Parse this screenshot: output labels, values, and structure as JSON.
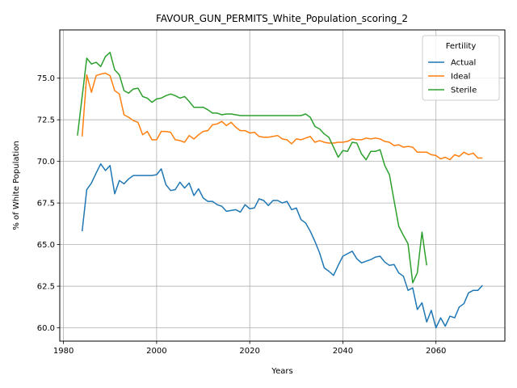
{
  "chart_data": {
    "type": "line",
    "title": "FAVOUR_GUN_PERMITS_White_Population_scoring_2",
    "xlabel": "Years",
    "ylabel": "% of White Population",
    "xlim": [
      1979.2,
      2074.8
    ],
    "ylim": [
      59.2,
      77.9
    ],
    "xticks": [
      1980,
      2000,
      2020,
      2040,
      2060
    ],
    "xtick_labels": [
      "1980",
      "2000",
      "2020",
      "2040",
      "2060"
    ],
    "yticks": [
      60.0,
      62.5,
      65.0,
      67.5,
      70.0,
      72.5,
      75.0
    ],
    "ytick_labels": [
      "60.0",
      "62.5",
      "65.0",
      "67.5",
      "70.0",
      "72.5",
      "75.0"
    ],
    "grid": true,
    "legend": {
      "title": "Fertility",
      "placement": "top-right"
    },
    "series": [
      {
        "name": "Actual",
        "color": "#1f77b4",
        "x": [
          1984,
          1985,
          1986,
          1987,
          1988,
          1989,
          1990,
          1991,
          1992,
          1993,
          1994,
          1995,
          1996,
          1997,
          1998,
          1999,
          2000,
          2001,
          2002,
          2003,
          2004,
          2005,
          2006,
          2007,
          2008,
          2009,
          2010,
          2011,
          2012,
          2013,
          2014,
          2015,
          2016,
          2017,
          2018,
          2019,
          2020,
          2021,
          2022,
          2023,
          2024,
          2025,
          2026,
          2027,
          2028,
          2029,
          2030,
          2031,
          2032,
          2033,
          2034,
          2035,
          2036,
          2037,
          2038,
          2039,
          2040,
          2041,
          2042,
          2043,
          2044,
          2045,
          2046,
          2047,
          2048,
          2049,
          2050,
          2051,
          2052,
          2053,
          2054,
          2055,
          2056,
          2057,
          2058,
          2059,
          2060,
          2061,
          2062,
          2063,
          2064,
          2065,
          2066,
          2067,
          2068,
          2069,
          2070
        ],
        "values": [
          65.8,
          68.3,
          68.7,
          69.3,
          69.85,
          69.45,
          69.75,
          68.05,
          68.85,
          68.65,
          68.95,
          69.15,
          69.15,
          69.15,
          69.15,
          69.15,
          69.2,
          69.55,
          68.6,
          68.25,
          68.3,
          68.75,
          68.4,
          68.7,
          67.95,
          68.35,
          67.8,
          67.6,
          67.6,
          67.4,
          67.3,
          67.0,
          67.05,
          67.1,
          66.95,
          67.4,
          67.15,
          67.2,
          67.75,
          67.65,
          67.35,
          67.65,
          67.65,
          67.5,
          67.6,
          67.1,
          67.2,
          66.5,
          66.3,
          65.8,
          65.2,
          64.5,
          63.6,
          63.4,
          63.15,
          63.75,
          64.3,
          64.45,
          64.6,
          64.15,
          63.9,
          64.0,
          64.1,
          64.25,
          64.3,
          63.95,
          63.75,
          63.8,
          63.3,
          63.1,
          62.25,
          62.4,
          61.1,
          61.5,
          60.35,
          61.05,
          60.0,
          60.6,
          60.1,
          60.7,
          60.6,
          61.25,
          61.45,
          62.1,
          62.25,
          62.25,
          62.55
        ]
      },
      {
        "name": "Ideal",
        "color": "#ff7f0e",
        "x": [
          1984,
          1985,
          1986,
          1987,
          1988,
          1989,
          1990,
          1991,
          1992,
          1993,
          1994,
          1995,
          1996,
          1997,
          1998,
          1999,
          2000,
          2001,
          2002,
          2003,
          2004,
          2005,
          2006,
          2007,
          2008,
          2009,
          2010,
          2011,
          2012,
          2013,
          2014,
          2015,
          2016,
          2017,
          2018,
          2019,
          2020,
          2021,
          2022,
          2023,
          2024,
          2025,
          2026,
          2027,
          2028,
          2029,
          2030,
          2031,
          2032,
          2033,
          2034,
          2035,
          2036,
          2037,
          2038,
          2039,
          2040,
          2041,
          2042,
          2043,
          2044,
          2045,
          2046,
          2047,
          2048,
          2049,
          2050,
          2051,
          2052,
          2053,
          2054,
          2055,
          2056,
          2057,
          2058,
          2059,
          2060,
          2061,
          2062,
          2063,
          2064,
          2065,
          2066,
          2067,
          2068,
          2069,
          2070
        ],
        "values": [
          71.5,
          75.2,
          74.15,
          75.15,
          75.25,
          75.3,
          75.15,
          74.25,
          74.05,
          72.8,
          72.65,
          72.45,
          72.35,
          71.6,
          71.8,
          71.3,
          71.3,
          71.8,
          71.8,
          71.75,
          71.3,
          71.25,
          71.15,
          71.55,
          71.35,
          71.6,
          71.8,
          71.85,
          72.2,
          72.25,
          72.4,
          72.15,
          72.35,
          72.05,
          71.85,
          71.85,
          71.7,
          71.75,
          71.5,
          71.45,
          71.45,
          71.5,
          71.55,
          71.35,
          71.3,
          71.05,
          71.35,
          71.3,
          71.4,
          71.5,
          71.15,
          71.25,
          71.15,
          71.1,
          71.1,
          71.15,
          71.15,
          71.2,
          71.35,
          71.3,
          71.3,
          71.4,
          71.35,
          71.4,
          71.35,
          71.2,
          71.15,
          70.95,
          71.0,
          70.85,
          70.9,
          70.85,
          70.55,
          70.55,
          70.55,
          70.4,
          70.35,
          70.15,
          70.25,
          70.1,
          70.4,
          70.3,
          70.55,
          70.4,
          70.5,
          70.2,
          70.2
        ]
      },
      {
        "name": "Sterile",
        "color": "#2ca02c",
        "x": [
          1983,
          1985,
          1986,
          1987,
          1988,
          1989,
          1990,
          1991,
          1992,
          1993,
          1994,
          1995,
          1996,
          1997,
          1998,
          1999,
          2000,
          2001,
          2002,
          2003,
          2004,
          2005,
          2006,
          2007,
          2008,
          2009,
          2010,
          2011,
          2012,
          2013,
          2014,
          2015,
          2016,
          2017,
          2018,
          2019,
          2020,
          2021,
          2022,
          2023,
          2024,
          2025,
          2026,
          2027,
          2028,
          2029,
          2030,
          2031,
          2032,
          2033,
          2034,
          2035,
          2036,
          2037,
          2038,
          2039,
          2040,
          2041,
          2042,
          2043,
          2044,
          2045,
          2046,
          2047,
          2048,
          2049,
          2050,
          2051,
          2052,
          2053,
          2054,
          2055,
          2056,
          2057,
          2058
        ],
        "values": [
          71.55,
          76.2,
          75.85,
          75.95,
          75.7,
          76.3,
          76.55,
          75.5,
          75.2,
          74.25,
          74.1,
          74.35,
          74.4,
          73.9,
          73.8,
          73.55,
          73.75,
          73.8,
          73.95,
          74.05,
          73.95,
          73.8,
          73.9,
          73.6,
          73.25,
          73.25,
          73.25,
          73.1,
          72.9,
          72.9,
          72.8,
          72.85,
          72.85,
          72.8,
          72.75,
          72.75,
          72.75,
          72.75,
          72.75,
          72.75,
          72.75,
          72.75,
          72.75,
          72.75,
          72.75,
          72.75,
          72.75,
          72.75,
          72.85,
          72.65,
          72.1,
          71.95,
          71.65,
          71.45,
          70.85,
          70.25,
          70.65,
          70.6,
          71.15,
          71.1,
          70.45,
          70.1,
          70.6,
          70.6,
          70.7,
          69.75,
          69.2,
          67.65,
          66.1,
          65.55,
          65.05,
          62.7,
          63.3,
          65.75,
          63.75
        ]
      }
    ]
  }
}
